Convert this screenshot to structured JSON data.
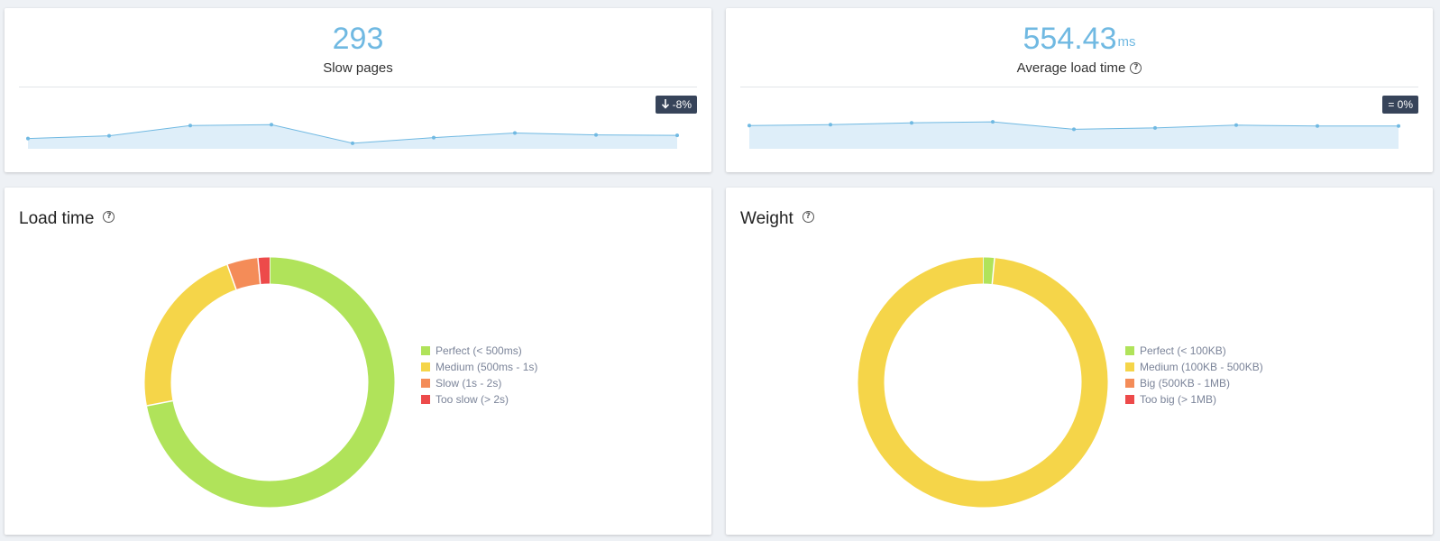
{
  "slow_pages": {
    "value": "293",
    "label": "Slow pages",
    "trend": "-8%",
    "trend_icon": "arrow-down-icon",
    "sparkline": [
      3.6,
      3.9,
      5.0,
      5.1,
      3.1,
      3.7,
      4.2,
      4.0,
      3.95
    ]
  },
  "avg_load": {
    "value": "554.43",
    "unit": "ms",
    "label": "Average load time",
    "trend": "= 0%",
    "sparkline": [
      5.0,
      5.1,
      5.3,
      5.4,
      4.6,
      4.75,
      5.05,
      4.95,
      4.95
    ]
  },
  "load_time": {
    "title": "Load time",
    "segments": [
      {
        "label": "Perfect (< 500ms)",
        "value": 72.0,
        "color": "#b0e35a"
      },
      {
        "label": "Medium (500ms - 1s)",
        "value": 22.5,
        "color": "#f5d549"
      },
      {
        "label": "Slow (1s - 2s)",
        "value": 4.0,
        "color": "#f48c58"
      },
      {
        "label": "Too slow (> 2s)",
        "value": 1.5,
        "color": "#ed4a4a"
      }
    ]
  },
  "weight": {
    "title": "Weight",
    "segments": [
      {
        "label": "Perfect (< 100KB)",
        "value": 1.5,
        "color": "#b0e35a"
      },
      {
        "label": "Medium (100KB - 500KB)",
        "value": 98.5,
        "color": "#f5d549"
      },
      {
        "label": "Big (500KB - 1MB)",
        "value": 0,
        "color": "#f48c58"
      },
      {
        "label": "Too big (> 1MB)",
        "value": 0,
        "color": "#ed4a4a"
      }
    ]
  },
  "colors": {
    "accent": "#70b9e2",
    "spark_fill": "#deeef9",
    "badge_bg": "#37445a"
  }
}
